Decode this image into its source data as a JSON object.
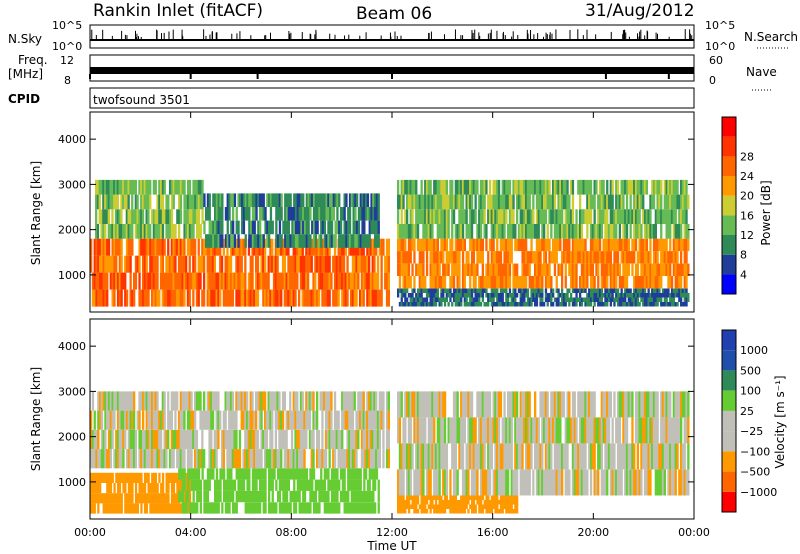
{
  "header": {
    "station": "Rankin Inlet (fitACF)",
    "beam": "Beam 06",
    "date": "31/Aug/2012"
  },
  "status_panels": {
    "nsky_label": "N.Sky",
    "nsky_ticks": [
      "10^5",
      "10^0"
    ],
    "nsearch_label": "N.Search",
    "freq_label_1": "Freq.",
    "freq_label_2": "[MHz]",
    "freq_ticks": [
      "12",
      "8"
    ],
    "nave_label": "Nave",
    "nave_ticks": [
      "60",
      "0"
    ],
    "cpid_label": "CPID",
    "cpid_value": "twofsound 3501"
  },
  "colors": {
    "power_scale": [
      "#0000ff",
      "#1f3d99",
      "#2e8b57",
      "#66bb55",
      "#cccc33",
      "#ff9900",
      "#ff6600",
      "#ff3300",
      "#ff0000"
    ],
    "velocity_scale": [
      "#ff0000",
      "#ff6600",
      "#ff9900",
      "#c0c0b8",
      "#c0c0b8",
      "#66cc33",
      "#2e8b57",
      "#1f4faa",
      "#2040b0"
    ]
  },
  "chart_data": [
    {
      "type": "heatmap",
      "panel": "power",
      "xlabel": "Time UT",
      "ylabel": "Slant Range [km]",
      "x_ticks": [
        "00:00",
        "04:00",
        "08:00",
        "12:00",
        "16:00",
        "20:00",
        "00:00"
      ],
      "xlim_hours": [
        0,
        24
      ],
      "y_ticks": [
        1000,
        2000,
        3000,
        4000
      ],
      "ylim_km": [
        180,
        4600
      ],
      "colorbar_label": "Power [dB]",
      "colorbar_ticks": [
        4,
        8,
        12,
        16,
        20,
        24,
        28
      ],
      "bands": [
        {
          "start_hr": 0.0,
          "end_hr": 11.9,
          "range_km": [
            300,
            1800
          ],
          "level_db": 26
        },
        {
          "start_hr": 0.2,
          "end_hr": 4.5,
          "range_km": [
            1800,
            3100
          ],
          "level_db": 14
        },
        {
          "start_hr": 4.5,
          "end_hr": 11.5,
          "range_km": [
            1600,
            2800
          ],
          "level_db": 10
        },
        {
          "start_hr": 12.2,
          "end_hr": 23.8,
          "range_km": [
            700,
            1800
          ],
          "level_db": 24
        },
        {
          "start_hr": 12.2,
          "end_hr": 23.8,
          "range_km": [
            1800,
            3100
          ],
          "level_db": 14
        },
        {
          "start_hr": 12.2,
          "end_hr": 23.8,
          "range_km": [
            300,
            700
          ],
          "level_db": 8
        }
      ]
    },
    {
      "type": "heatmap",
      "panel": "velocity",
      "xlabel": "Time UT",
      "ylabel": "Slant Range [km]",
      "x_ticks": [
        "00:00",
        "04:00",
        "08:00",
        "12:00",
        "16:00",
        "20:00",
        "00:00"
      ],
      "xlim_hours": [
        0,
        24
      ],
      "y_ticks": [
        1000,
        2000,
        3000,
        4000
      ],
      "ylim_km": [
        180,
        4600
      ],
      "colorbar_label": "Velocity [m s⁻¹]",
      "colorbar_ticks": [
        "1000",
        "500",
        "100",
        "25",
        "−25",
        "−100",
        "−500",
        "−1000"
      ],
      "bands": [
        {
          "start_hr": 0.0,
          "end_hr": 4.0,
          "range_km": [
            300,
            1200
          ],
          "level_ms": -200
        },
        {
          "start_hr": 3.5,
          "end_hr": 11.5,
          "range_km": [
            300,
            1300
          ],
          "level_ms": 200
        },
        {
          "start_hr": 0.0,
          "end_hr": 11.9,
          "range_km": [
            1300,
            3000
          ],
          "level_ms": 0
        },
        {
          "start_hr": 12.2,
          "end_hr": 23.8,
          "range_km": [
            700,
            3000
          ],
          "level_ms": 0
        },
        {
          "start_hr": 12.2,
          "end_hr": 17.0,
          "range_km": [
            300,
            700
          ],
          "level_ms": -200
        }
      ]
    }
  ]
}
